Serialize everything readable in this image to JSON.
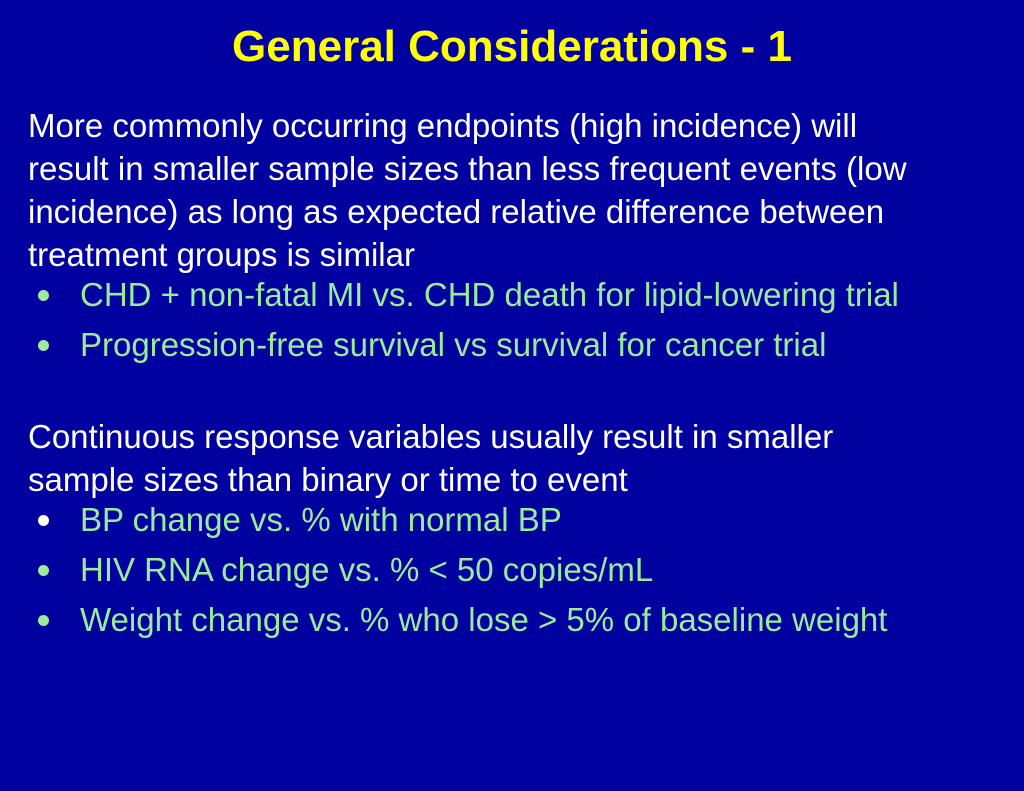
{
  "slide": {
    "title": "General Considerations - 1",
    "intro_paragraph": "More commonly occurring endpoints (high incidence) will\nresult in smaller sample sizes than less frequent events (low\nincidence) as long as expected relative difference between\ntreatment groups is similar",
    "endpoint_bullets": [
      "CHD + non-fatal MI vs. CHD death for lipid-lowering trial",
      "Progression-free survival vs survival for cancer trial"
    ],
    "continuous_paragraph": "Continuous response variables usually result in smaller\nsample sizes than binary or time to event",
    "continuous_bullets": [
      "BP change vs. % with normal BP",
      "HIV RNA change vs. % < 50 copies/mL",
      "Weight change vs. % who lose > 5% of baseline weight"
    ],
    "colors": {
      "background": "#0101a0",
      "title_text": "#ffff00",
      "body_text": "#ffffff",
      "bullet_text": "#99ec99",
      "bullet_dot_green": "#99ec99",
      "bullet_dot_white": "#ffffff"
    }
  }
}
